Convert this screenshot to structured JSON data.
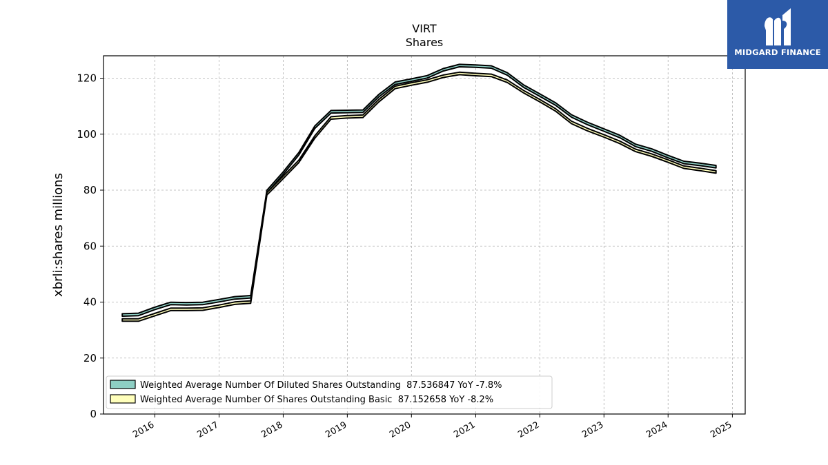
{
  "chart_data": {
    "type": "area",
    "title": "VIRT",
    "subtitle": "Shares",
    "xlabel": "",
    "ylabel": "xbrli:shares millions",
    "ylim": [
      0,
      128
    ],
    "xlim": [
      "2015-03-15",
      "2025-03-15"
    ],
    "yticks": [
      0,
      20,
      40,
      60,
      80,
      100,
      120
    ],
    "xticks": [
      "2016",
      "2017",
      "2018",
      "2019",
      "2020",
      "2021",
      "2022",
      "2023",
      "2024",
      "2025"
    ],
    "grid": true,
    "legend_position": "lower-left",
    "series": [
      {
        "name": "Weighted Average Number Of Diluted Shares Outstanding  87.536847 YoY -7.8%",
        "color": "#8ecfc4",
        "points": [
          [
            "2015-06-30",
            35.4
          ],
          [
            "2015-09-30",
            35.6
          ],
          [
            "2015-12-31",
            37.7
          ],
          [
            "2016-03-31",
            39.5
          ],
          [
            "2016-06-30",
            39.4
          ],
          [
            "2016-09-30",
            39.5
          ],
          [
            "2016-12-31",
            40.5
          ],
          [
            "2017-03-31",
            41.5
          ],
          [
            "2017-06-30",
            41.9
          ],
          [
            "2017-09-30",
            79.5
          ],
          [
            "2017-12-31",
            86.0
          ],
          [
            "2018-03-31",
            93.0
          ],
          [
            "2018-06-30",
            102.5
          ],
          [
            "2018-09-30",
            108.0
          ],
          [
            "2018-12-31",
            108.1
          ],
          [
            "2019-03-31",
            108.2
          ],
          [
            "2019-06-30",
            113.8
          ],
          [
            "2019-09-30",
            118.2
          ],
          [
            "2019-12-31",
            119.3
          ],
          [
            "2020-03-31",
            120.5
          ],
          [
            "2020-06-30",
            123.0
          ],
          [
            "2020-09-30",
            124.5
          ],
          [
            "2020-12-31",
            124.3
          ],
          [
            "2021-03-31",
            124.0
          ],
          [
            "2021-06-30",
            121.5
          ],
          [
            "2021-09-30",
            117.2
          ],
          [
            "2021-12-31",
            114.0
          ],
          [
            "2022-03-31",
            110.8
          ],
          [
            "2022-06-30",
            106.5
          ],
          [
            "2022-09-30",
            103.8
          ],
          [
            "2022-12-31",
            101.5
          ],
          [
            "2023-03-31",
            99.2
          ],
          [
            "2023-06-30",
            96.0
          ],
          [
            "2023-09-30",
            94.3
          ],
          [
            "2023-12-31",
            92.0
          ],
          [
            "2024-03-31",
            89.9
          ],
          [
            "2024-06-30",
            89.2
          ],
          [
            "2024-09-30",
            88.4
          ]
        ]
      },
      {
        "name": "Weighted Average Number Of Shares Outstanding Basic  87.152658 YoY -8.2%",
        "color": "#ffffbb",
        "points": [
          [
            "2015-06-30",
            33.6
          ],
          [
            "2015-09-30",
            33.6
          ],
          [
            "2015-12-31",
            35.5
          ],
          [
            "2016-03-31",
            37.4
          ],
          [
            "2016-06-30",
            37.4
          ],
          [
            "2016-09-30",
            37.5
          ],
          [
            "2016-12-31",
            38.5
          ],
          [
            "2017-03-31",
            39.6
          ],
          [
            "2017-06-30",
            40.0
          ],
          [
            "2017-09-30",
            78.7
          ],
          [
            "2017-12-31",
            84.5
          ],
          [
            "2018-03-31",
            90.3
          ],
          [
            "2018-06-30",
            99.0
          ],
          [
            "2018-09-30",
            105.8
          ],
          [
            "2018-12-31",
            106.2
          ],
          [
            "2019-03-31",
            106.4
          ],
          [
            "2019-06-30",
            112.0
          ],
          [
            "2019-09-30",
            116.7
          ],
          [
            "2019-12-31",
            117.9
          ],
          [
            "2020-03-31",
            119.0
          ],
          [
            "2020-06-30",
            120.7
          ],
          [
            "2020-09-30",
            121.7
          ],
          [
            "2020-12-31",
            121.3
          ],
          [
            "2021-03-31",
            121.0
          ],
          [
            "2021-06-30",
            118.9
          ],
          [
            "2021-09-30",
            115.2
          ],
          [
            "2021-12-31",
            112.0
          ],
          [
            "2022-03-31",
            108.7
          ],
          [
            "2022-06-30",
            104.2
          ],
          [
            "2022-09-30",
            101.6
          ],
          [
            "2022-12-31",
            99.4
          ],
          [
            "2023-03-31",
            97.1
          ],
          [
            "2023-06-30",
            94.2
          ],
          [
            "2023-09-30",
            92.5
          ],
          [
            "2023-12-31",
            90.4
          ],
          [
            "2024-03-31",
            88.2
          ],
          [
            "2024-06-30",
            87.4
          ],
          [
            "2024-09-30",
            86.5
          ]
        ]
      }
    ]
  },
  "logo": {
    "text": "MIDGARD FINANCE",
    "background": "#2c5aa8"
  }
}
